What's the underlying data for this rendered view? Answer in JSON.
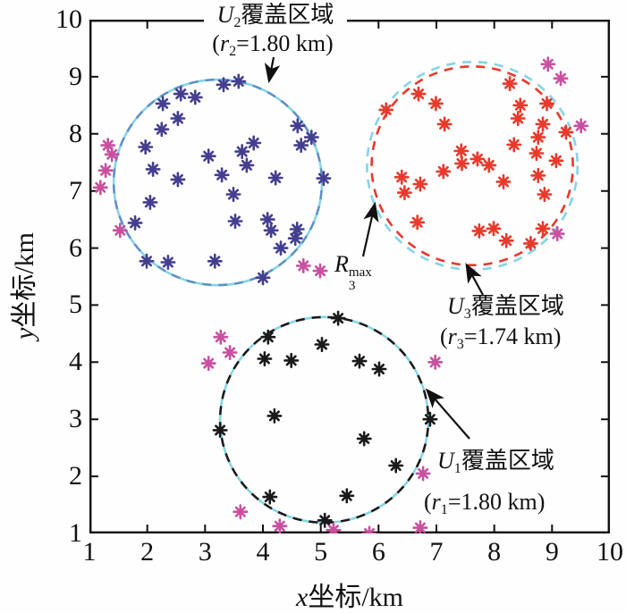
{
  "figure": {
    "xlabel_italic": "x",
    "xlabel_rest": "坐标/km",
    "ylabel_italic": "y",
    "ylabel_rest": "坐标/km",
    "x_ticks": [
      1,
      2,
      3,
      4,
      5,
      6,
      7,
      8,
      9,
      10
    ],
    "y_ticks": [
      1,
      2,
      3,
      4,
      5,
      6,
      7,
      8,
      9,
      10
    ]
  },
  "colors": {
    "axis": "#111111",
    "u1_points": "#1a1a1a",
    "u2_points": "#443e90",
    "u3_points": "#e8392b",
    "uncovered_points": "#c8509f",
    "u1_circle": "#1a1a1a",
    "u2_circle": "#5e8fc7",
    "u3_circle": "#e8392b",
    "max_radius_circle": "#85d5e6"
  },
  "annotations": {
    "u2": {
      "sym": "U",
      "sub": "2",
      "label": "覆盖区域",
      "r_open": "(",
      "r_sym": "r",
      "r_sub": "2",
      "r_rest": "=1.80 km)"
    },
    "u3": {
      "sym": "U",
      "sub": "3",
      "label": "覆盖区域",
      "r_open": "(",
      "r_sym": "r",
      "r_sub": "3",
      "r_rest": "=1.74 km)"
    },
    "u1": {
      "sym": "U",
      "sub": "1",
      "label": "覆盖区域",
      "r_open": "(",
      "r_sym": "r",
      "r_sub": "1",
      "r_rest": "=1.80 km)"
    },
    "rmax": {
      "sym": "R",
      "sub": "3",
      "sup": "max"
    },
    "arrows": [
      {
        "name": "u2-arrow",
        "from": [
          306,
          64
        ],
        "to": [
          301,
          90
        ]
      },
      {
        "name": "rmax-arrow",
        "from": [
          406,
          287
        ],
        "to": [
          419,
          229
        ]
      },
      {
        "name": "u3-arrow",
        "from": [
          540,
          330
        ],
        "to": [
          522,
          297
        ]
      },
      {
        "name": "u1-arrow",
        "from": [
          525,
          491
        ],
        "to": [
          478,
          437
        ]
      }
    ]
  },
  "chart_data": {
    "type": "scatter",
    "title": "",
    "xlabel": "x坐标/km",
    "ylabel": "y坐标/km",
    "xlim": [
      1,
      10
    ],
    "ylim": [
      1,
      10
    ],
    "grid": false,
    "legend": "none",
    "circles": [
      {
        "name": "U2-coverage",
        "center": [
          3.22,
          7.15
        ],
        "radius_km": 1.8,
        "max_radius_km": 1.8,
        "color": "#5e8fc7"
      },
      {
        "name": "U3-coverage",
        "center": [
          7.62,
          7.44
        ],
        "radius_km": 1.74,
        "max_radius_km": 1.82,
        "color": "#e8392b"
      },
      {
        "name": "U1-coverage",
        "center": [
          5.06,
          2.99
        ],
        "radius_km": 1.8,
        "max_radius_km": 1.8,
        "color": "#1a1a1a"
      }
    ],
    "series": [
      {
        "name": "U2-users",
        "marker": "*",
        "color": "#443e90",
        "points": [
          [
            3.32,
            8.86
          ],
          [
            3.58,
            8.92
          ],
          [
            2.58,
            8.7
          ],
          [
            2.83,
            8.64
          ],
          [
            2.27,
            8.53
          ],
          [
            2.53,
            8.27
          ],
          [
            2.25,
            8.08
          ],
          [
            4.6,
            8.14
          ],
          [
            4.84,
            7.94
          ],
          [
            3.84,
            7.84
          ],
          [
            1.97,
            7.77
          ],
          [
            3.64,
            7.69
          ],
          [
            3.06,
            7.61
          ],
          [
            3.72,
            7.45
          ],
          [
            4.66,
            7.8
          ],
          [
            2.1,
            7.38
          ],
          [
            3.29,
            7.28
          ],
          [
            2.53,
            7.2
          ],
          [
            4.22,
            7.23
          ],
          [
            3.49,
            6.94
          ],
          [
            2.05,
            6.8
          ],
          [
            1.79,
            6.44
          ],
          [
            4.08,
            6.5
          ],
          [
            4.14,
            6.31
          ],
          [
            4.59,
            6.33
          ],
          [
            4.56,
            6.17
          ],
          [
            4.31,
            6.0
          ],
          [
            3.52,
            6.47
          ],
          [
            1.99,
            5.77
          ],
          [
            2.36,
            5.75
          ],
          [
            3.17,
            5.77
          ],
          [
            4.0,
            5.48
          ],
          [
            5.05,
            7.22
          ]
        ]
      },
      {
        "name": "U3-users",
        "marker": "*",
        "color": "#e8392b",
        "points": [
          [
            8.27,
            8.88
          ],
          [
            6.69,
            8.7
          ],
          [
            6.99,
            8.53
          ],
          [
            6.13,
            8.42
          ],
          [
            8.45,
            8.5
          ],
          [
            8.91,
            8.53
          ],
          [
            8.41,
            8.27
          ],
          [
            7.14,
            8.17
          ],
          [
            8.84,
            8.17
          ],
          [
            9.24,
            8.03
          ],
          [
            8.76,
            7.94
          ],
          [
            8.34,
            7.81
          ],
          [
            7.43,
            7.7
          ],
          [
            8.73,
            7.66
          ],
          [
            7.71,
            7.56
          ],
          [
            7.44,
            7.48
          ],
          [
            7.91,
            7.45
          ],
          [
            7.12,
            7.34
          ],
          [
            9.07,
            7.53
          ],
          [
            6.4,
            7.24
          ],
          [
            6.72,
            7.12
          ],
          [
            8.16,
            7.16
          ],
          [
            8.76,
            7.27
          ],
          [
            6.45,
            6.97
          ],
          [
            8.87,
            6.94
          ],
          [
            6.67,
            6.45
          ],
          [
            7.74,
            6.3
          ],
          [
            7.99,
            6.34
          ],
          [
            8.21,
            6.13
          ],
          [
            8.63,
            6.08
          ],
          [
            8.84,
            6.34
          ]
        ]
      },
      {
        "name": "U1-users",
        "marker": "*",
        "color": "#1a1a1a",
        "points": [
          [
            5.3,
            4.77
          ],
          [
            4.09,
            4.44
          ],
          [
            5.02,
            4.31
          ],
          [
            4.03,
            4.06
          ],
          [
            4.49,
            4.03
          ],
          [
            5.67,
            4.02
          ],
          [
            6.01,
            3.88
          ],
          [
            4.2,
            3.06
          ],
          [
            3.26,
            2.81
          ],
          [
            6.89,
            3.0
          ],
          [
            5.75,
            2.66
          ],
          [
            6.3,
            2.19
          ],
          [
            4.12,
            1.64
          ],
          [
            5.45,
            1.66
          ],
          [
            5.07,
            1.23
          ]
        ]
      },
      {
        "name": "uncovered-users",
        "marker": "*",
        "color": "#c8509f",
        "points": [
          [
            1.32,
            7.8
          ],
          [
            1.39,
            7.64
          ],
          [
            1.28,
            7.36
          ],
          [
            1.19,
            7.06
          ],
          [
            1.53,
            6.31
          ],
          [
            4.7,
            5.69
          ],
          [
            4.99,
            5.6
          ],
          [
            8.93,
            9.22
          ],
          [
            9.15,
            8.97
          ],
          [
            9.5,
            8.14
          ],
          [
            9.09,
            6.25
          ],
          [
            3.27,
            4.44
          ],
          [
            3.43,
            4.17
          ],
          [
            3.06,
            3.98
          ],
          [
            6.98,
            4.0
          ],
          [
            6.77,
            2.05
          ],
          [
            3.61,
            1.38
          ],
          [
            4.29,
            1.13
          ],
          [
            5.22,
            1.06
          ],
          [
            6.72,
            1.1
          ],
          [
            5.84,
            1.0
          ]
        ]
      }
    ]
  }
}
